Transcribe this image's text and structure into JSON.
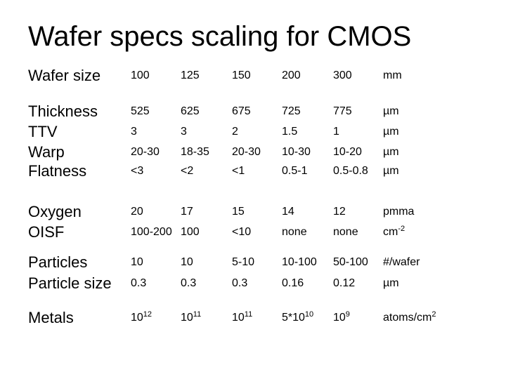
{
  "title": "Wafer specs scaling for CMOS",
  "rows": [
    {
      "label": "Wafer size",
      "cells": [
        "100",
        "125",
        "150",
        "200",
        "300",
        "mm"
      ]
    },
    {
      "label": "Thickness",
      "cells": [
        "525",
        "625",
        "675",
        "725",
        "775",
        "µm"
      ]
    },
    {
      "label": "TTV",
      "cells": [
        "3",
        "3",
        "2",
        "1.5",
        "1",
        "µm"
      ]
    },
    {
      "label": "Warp",
      "cells": [
        "20-30",
        "18-35",
        "20-30",
        "10-30",
        "10-20",
        "µm"
      ]
    },
    {
      "label": "Flatness",
      "cells": [
        "<3",
        "<2",
        "<1",
        "0.5-1",
        "0.5-0.8",
        "µm"
      ]
    },
    {
      "label": "Oxygen",
      "cells": [
        "20",
        "17",
        "15",
        "14",
        "12",
        "pmma"
      ]
    },
    {
      "label": "OISF",
      "cells": [
        "100-200",
        "100",
        "<10",
        "none",
        "none",
        "cm-2"
      ]
    },
    {
      "label": "Particles",
      "cells": [
        "10",
        "10",
        "5-10",
        "10-100",
        "50-100",
        "#/wafer"
      ]
    },
    {
      "label": "Particle size",
      "cells": [
        "0.3",
        "0.3",
        "0.3",
        "0.16",
        "0.12",
        "µm"
      ]
    },
    {
      "label": "Metals",
      "cells": [
        "1012",
        "1011",
        "1011",
        "5*1010",
        "109",
        "atoms/cm2"
      ]
    }
  ]
}
